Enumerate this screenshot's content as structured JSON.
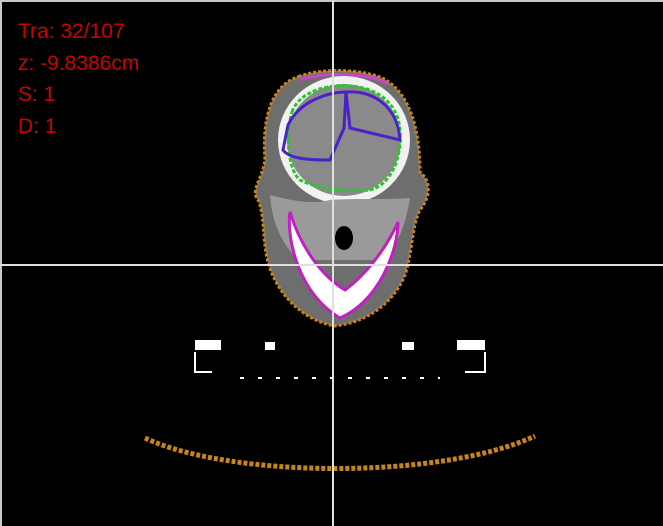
{
  "overlay": {
    "lines": [
      "Tra: 32/107",
      "z: -9.8386cm",
      "S: 1",
      "D: 1"
    ]
  }
}
